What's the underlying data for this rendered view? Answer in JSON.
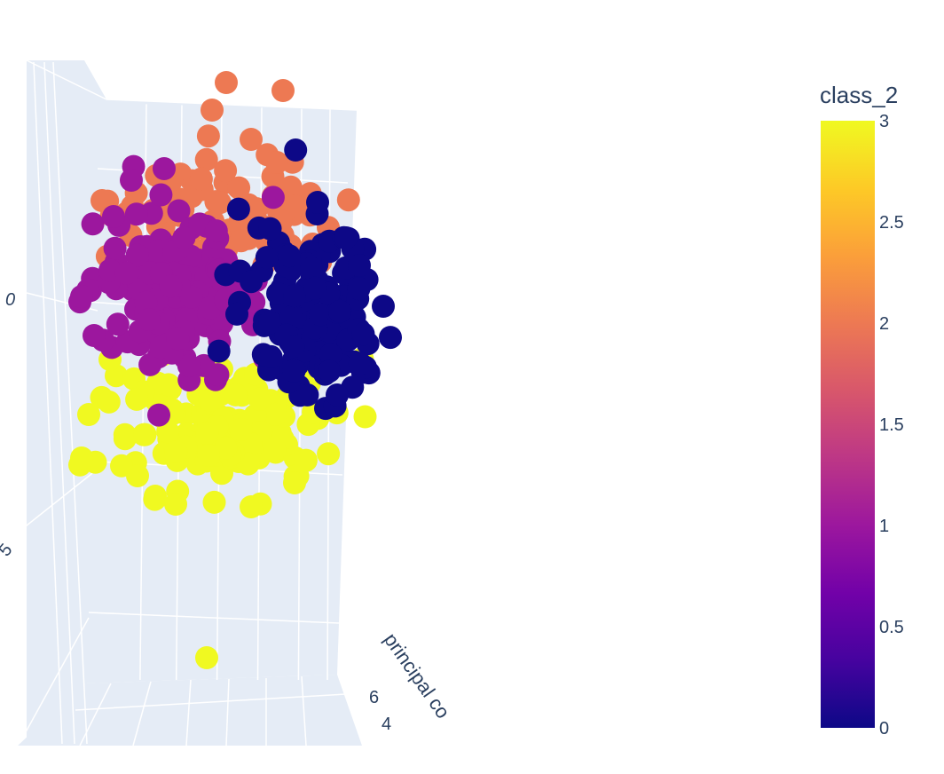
{
  "chart_data": {
    "type": "scatter",
    "subtype": "scatter3d",
    "colorbar": {
      "title": "class_2",
      "range": [
        0,
        3
      ],
      "ticks": [
        "0",
        "0.5",
        "1",
        "1.5",
        "2",
        "2.5",
        "3"
      ],
      "colorscale": [
        "#0d0887",
        "#46039f",
        "#7201a8",
        "#9c179e",
        "#bd3786",
        "#d8576b",
        "#ed7953",
        "#fb9f3a",
        "#fdca26",
        "#f0f921"
      ]
    },
    "axis_tick_labels": {
      "left_a": "0",
      "left_b": "5",
      "bottom_a": "6",
      "bottom_b": "4"
    },
    "axis_title_partial": "principal co",
    "series": [
      {
        "class": 0,
        "color": "#0d0887"
      },
      {
        "class": 1,
        "color": "#9c179e"
      },
      {
        "class": 2,
        "color": "#ed7953"
      },
      {
        "class": 3,
        "color": "#f0f921"
      }
    ],
    "background": "#e5ecf6"
  }
}
